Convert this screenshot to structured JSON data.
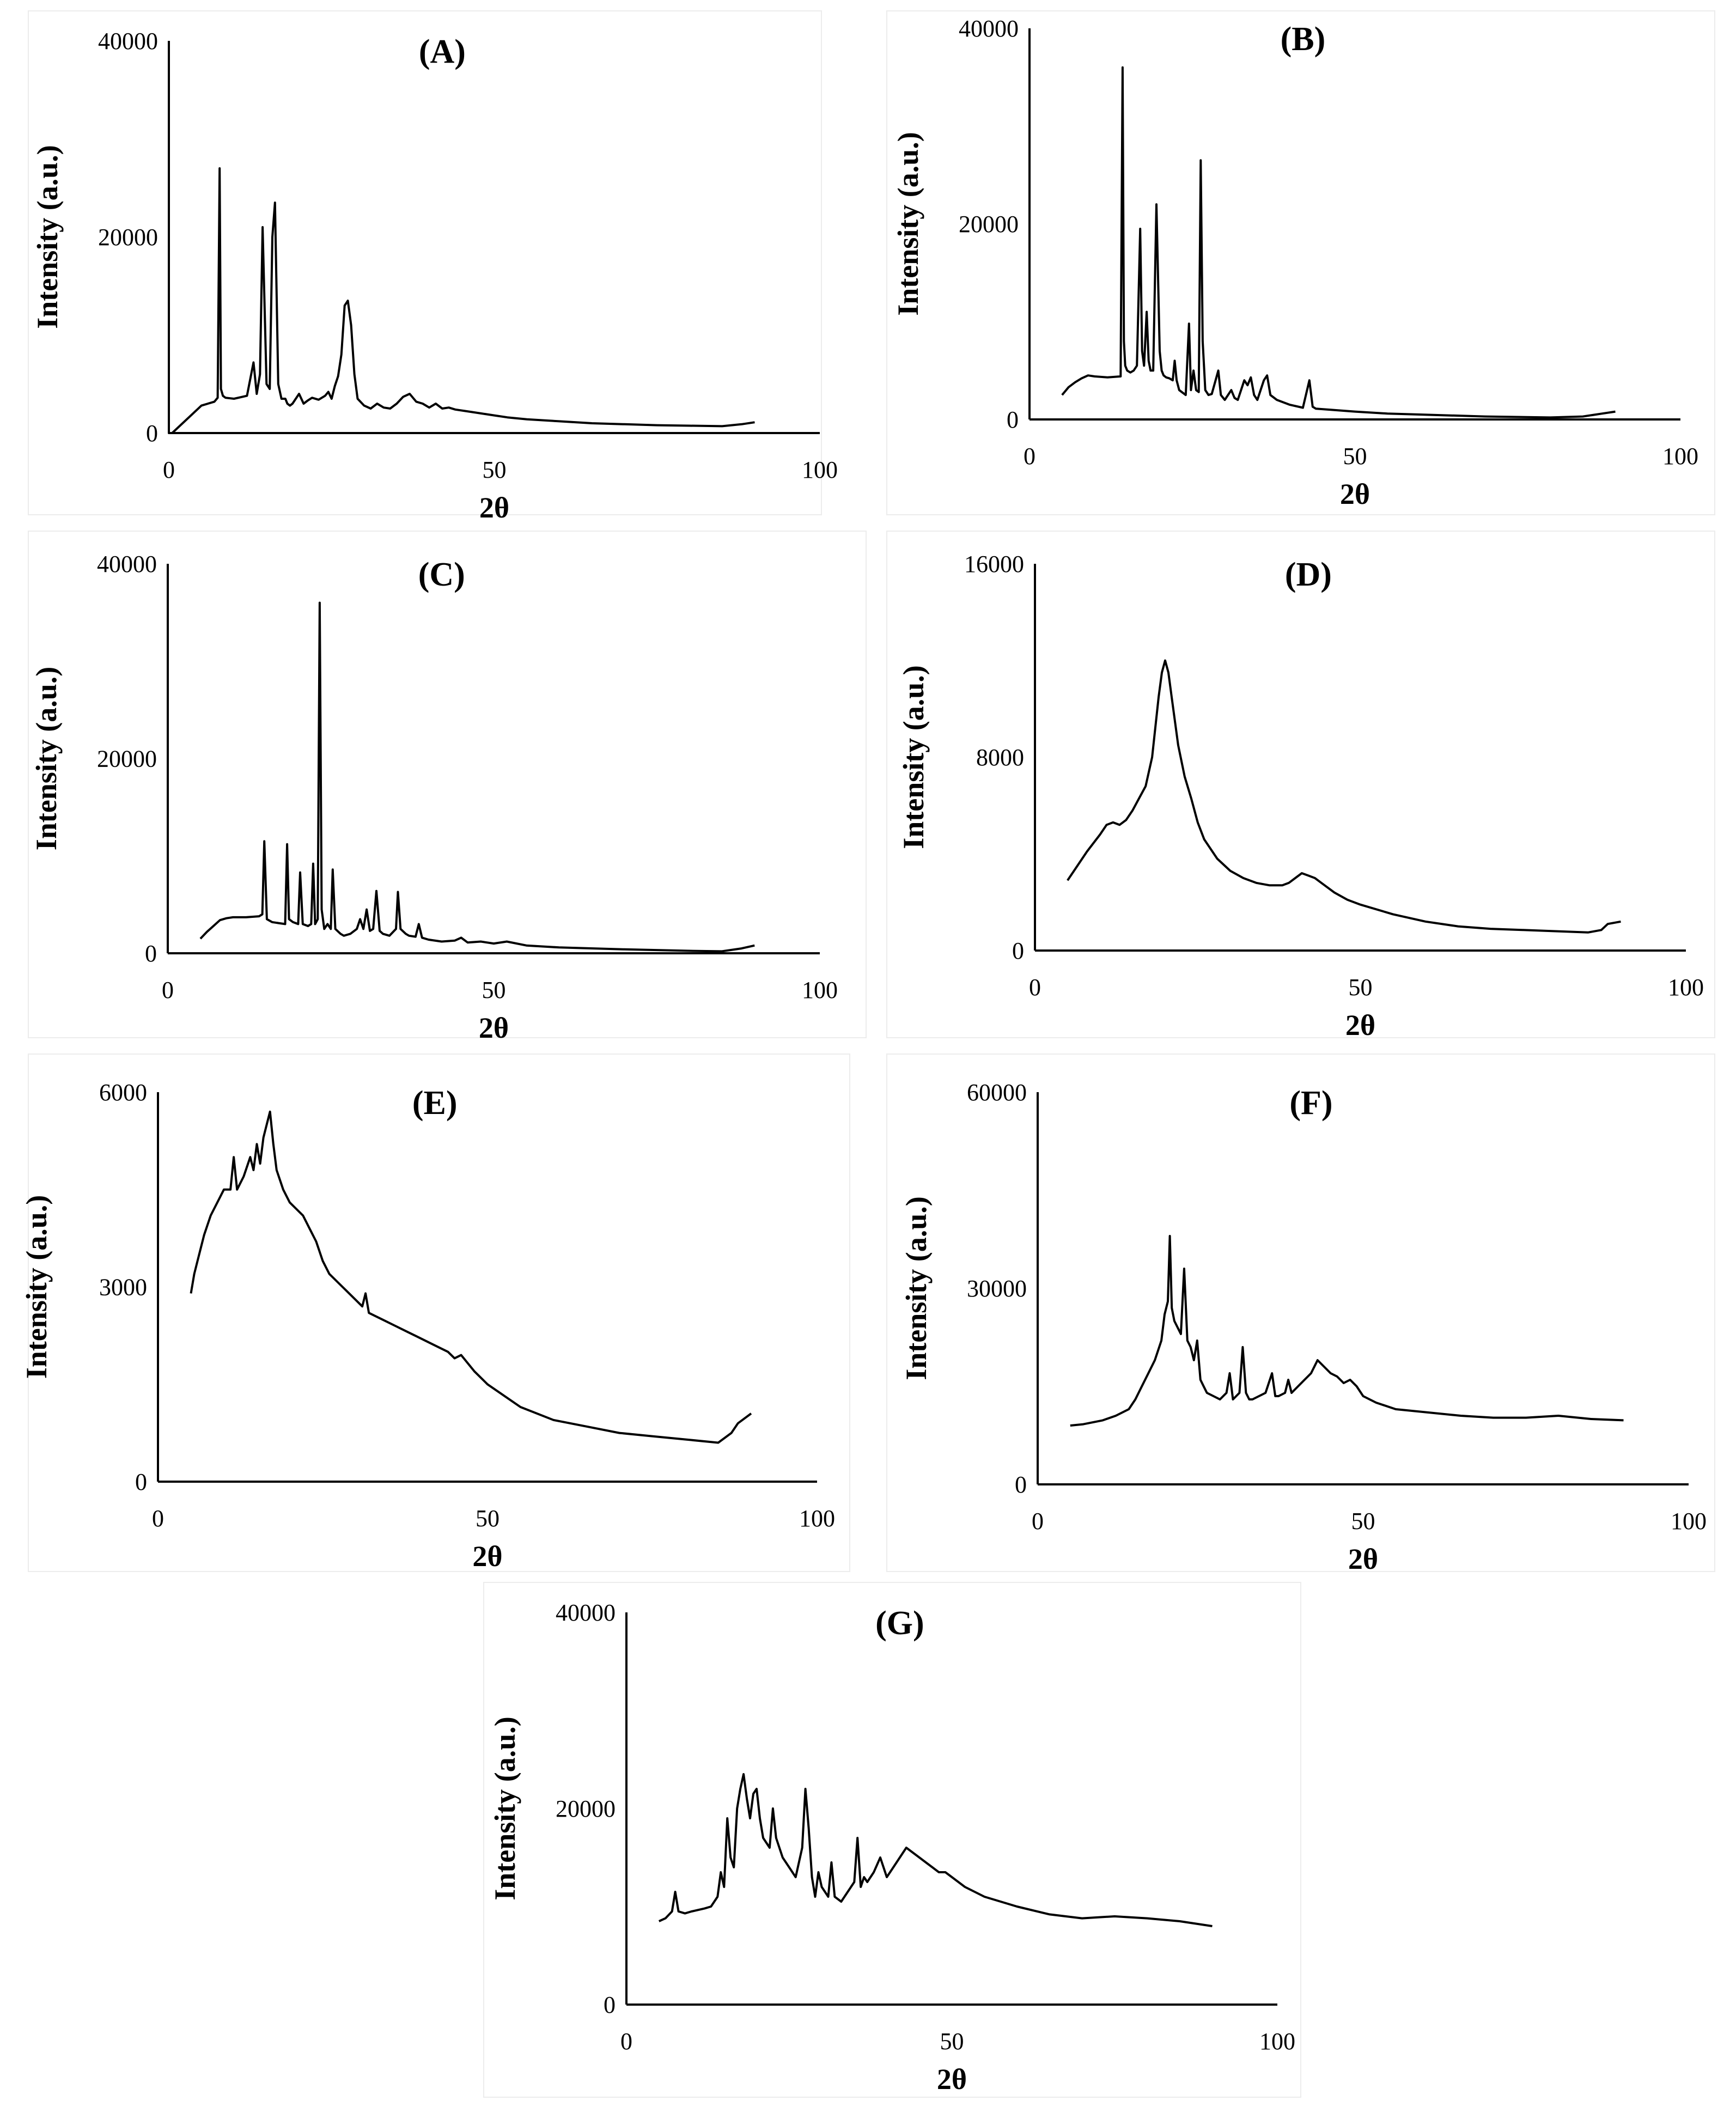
{
  "chart_data": [
    {
      "id": "A",
      "type": "line",
      "title": "(A)",
      "xlabel": "2θ",
      "ylabel": "Intensity (a.u.)",
      "xlim": [
        0,
        100
      ],
      "ylim": [
        0,
        40000
      ],
      "xticks": [
        0,
        50,
        100
      ],
      "yticks": [
        0,
        20000,
        40000
      ],
      "x": [
        0,
        0,
        0.5,
        5,
        7,
        7.5,
        7.8,
        8.0,
        8.3,
        8.7,
        10,
        12,
        13,
        13.5,
        14,
        14.4,
        15,
        15.5,
        15.9,
        16.3,
        16.8,
        17.3,
        17.9,
        18.2,
        18.6,
        19,
        20,
        20.7,
        21.3,
        22,
        23,
        24,
        24.5,
        25,
        25.5,
        26,
        26.5,
        27,
        27.5,
        28,
        28.5,
        29,
        30,
        31,
        32,
        33,
        34,
        35,
        36,
        37,
        38,
        39,
        40,
        41,
        42,
        43,
        44,
        46,
        48,
        50,
        52,
        55,
        60,
        65,
        70,
        75,
        80,
        85,
        88,
        90
      ],
      "y": [
        40000,
        0,
        0,
        2800,
        3200,
        3600,
        27000,
        4500,
        3800,
        3600,
        3500,
        3800,
        7200,
        4000,
        6000,
        21000,
        5000,
        4500,
        20000,
        23500,
        5000,
        3500,
        3500,
        3000,
        2800,
        3000,
        4000,
        3000,
        3300,
        3600,
        3400,
        3800,
        4200,
        3500,
        4800,
        5800,
        8000,
        13000,
        13500,
        11000,
        6000,
        3500,
        2800,
        2500,
        3000,
        2600,
        2500,
        3000,
        3700,
        4000,
        3200,
        3000,
        2600,
        3000,
        2500,
        2600,
        2400,
        2200,
        2000,
        1800,
        1600,
        1400,
        1200,
        1000,
        900,
        800,
        750,
        700,
        900,
        1100
      ]
    },
    {
      "id": "B",
      "type": "line",
      "title": "(B)",
      "xlabel": "2θ",
      "ylabel": "Intensity (a.u.)",
      "xlim": [
        0,
        100
      ],
      "ylim": [
        0,
        40000
      ],
      "xticks": [
        0,
        50,
        100
      ],
      "yticks": [
        0,
        20000,
        40000
      ],
      "x": [
        5,
        6,
        7,
        8,
        9,
        10,
        12,
        14,
        14.3,
        14.5,
        14.7,
        15,
        15.5,
        16,
        16.5,
        17,
        17.3,
        17.6,
        18,
        18.3,
        18.6,
        19,
        19.5,
        20,
        20.3,
        20.6,
        21,
        21.5,
        22,
        22.3,
        22.6,
        23,
        24,
        24.5,
        24.8,
        25.2,
        25.6,
        26,
        26.3,
        26.6,
        27,
        27.5,
        28,
        29,
        29.4,
        30,
        31,
        31.5,
        32,
        33,
        33.5,
        34,
        34.5,
        35,
        36,
        36.5,
        37,
        38,
        40,
        42,
        43,
        43.5,
        44,
        46,
        50,
        55,
        60,
        70,
        80,
        85,
        88,
        90
      ],
      "y": [
        2500,
        3300,
        3800,
        4200,
        4500,
        4400,
        4300,
        4400,
        36000,
        8000,
        5500,
        5000,
        4800,
        5000,
        5500,
        19500,
        7000,
        5500,
        11000,
        6000,
        5000,
        5000,
        22000,
        7000,
        5000,
        4500,
        4300,
        4200,
        4000,
        6000,
        4000,
        3000,
        2500,
        9800,
        3000,
        5000,
        3000,
        2800,
        26500,
        8000,
        3000,
        2500,
        2600,
        5000,
        2500,
        2000,
        3000,
        2200,
        2000,
        4000,
        3500,
        4300,
        2500,
        2000,
        4000,
        4500,
        2500,
        2000,
        1500,
        1200,
        4000,
        1300,
        1100,
        1000,
        800,
        600,
        500,
        300,
        200,
        300,
        600,
        800
      ]
    },
    {
      "id": "C",
      "type": "line",
      "title": "(C)",
      "xlabel": "2θ",
      "ylabel": "Intensity (a.u.)",
      "xlim": [
        0,
        100
      ],
      "ylim": [
        0,
        40000
      ],
      "xticks": [
        0,
        50,
        100
      ],
      "yticks": [
        0,
        20000,
        40000
      ],
      "x": [
        5,
        6,
        7,
        8,
        9,
        10,
        12,
        14,
        14.5,
        14.8,
        15.2,
        16,
        17,
        18,
        18.3,
        18.6,
        19.2,
        20,
        20.3,
        20.7,
        21.5,
        22,
        22.3,
        22.6,
        23,
        23.3,
        23.6,
        24,
        24.5,
        25,
        25.3,
        25.7,
        26.5,
        27,
        28,
        29,
        29.5,
        30,
        30.5,
        31,
        31.5,
        32,
        32.5,
        33,
        34,
        35,
        35.3,
        35.7,
        36.5,
        37,
        38,
        38.5,
        39,
        40,
        42,
        44,
        45,
        46,
        48,
        50,
        52,
        55,
        60,
        70,
        80,
        85,
        88,
        90
      ],
      "y": [
        1500,
        2200,
        2800,
        3400,
        3600,
        3700,
        3700,
        3800,
        4000,
        11500,
        3500,
        3200,
        3100,
        3000,
        11200,
        3500,
        3200,
        3000,
        8300,
        3000,
        2800,
        3000,
        9200,
        3000,
        3500,
        36000,
        4500,
        2500,
        3000,
        2500,
        8600,
        2500,
        2000,
        1800,
        2000,
        2500,
        3500,
        2500,
        4500,
        2300,
        2500,
        6400,
        2300,
        2000,
        1800,
        2500,
        6300,
        2500,
        2000,
        1800,
        1700,
        3000,
        1600,
        1400,
        1200,
        1300,
        1600,
        1100,
        1200,
        1000,
        1200,
        800,
        600,
        400,
        250,
        200,
        500,
        800
      ]
    },
    {
      "id": "D",
      "type": "line",
      "title": "(D)",
      "xlabel": "2θ",
      "ylabel": "Intensity (a.u.)",
      "xlim": [
        0,
        100
      ],
      "ylim": [
        0,
        16000
      ],
      "xticks": [
        0,
        50,
        100
      ],
      "yticks": [
        0,
        8000,
        16000
      ],
      "x": [
        5,
        6,
        8,
        10,
        11,
        12,
        13,
        14,
        15,
        16,
        17,
        18,
        19,
        19.5,
        20,
        20.5,
        21,
        22,
        23,
        24,
        25,
        26,
        28,
        30,
        32,
        34,
        36,
        38,
        39,
        40,
        41,
        42,
        43,
        44,
        46,
        48,
        50,
        55,
        60,
        65,
        70,
        75,
        80,
        85,
        87,
        88,
        90
      ],
      "y": [
        2900,
        3300,
        4100,
        4800,
        5200,
        5300,
        5200,
        5400,
        5800,
        6300,
        6800,
        8000,
        10500,
        11500,
        12000,
        11500,
        10500,
        8500,
        7200,
        6300,
        5300,
        4600,
        3800,
        3300,
        3000,
        2800,
        2700,
        2700,
        2800,
        3000,
        3200,
        3100,
        3000,
        2800,
        2400,
        2100,
        1900,
        1500,
        1200,
        1000,
        900,
        850,
        800,
        750,
        850,
        1100,
        1200
      ]
    },
    {
      "id": "E",
      "type": "line",
      "title": "(E)",
      "xlabel": "2θ",
      "ylabel": "Intensity (a.u.)",
      "xlim": [
        0,
        100
      ],
      "ylim": [
        0,
        6000
      ],
      "xticks": [
        0,
        50,
        100
      ],
      "yticks": [
        0,
        3000,
        6000
      ],
      "x": [
        5,
        5.5,
        6,
        7,
        8,
        9,
        10,
        11,
        11.5,
        12,
        13,
        14,
        14.5,
        15,
        15.5,
        16,
        16.5,
        17,
        17.5,
        18,
        19,
        20,
        21,
        22,
        23,
        24,
        25,
        26,
        28,
        30,
        31,
        31.5,
        32,
        34,
        36,
        38,
        40,
        42,
        44,
        45,
        46,
        48,
        50,
        55,
        60,
        65,
        70,
        75,
        80,
        85,
        87,
        88,
        90
      ],
      "y": [
        2900,
        3200,
        3400,
        3800,
        4100,
        4300,
        4500,
        4500,
        5000,
        4500,
        4700,
        5000,
        4800,
        5200,
        4900,
        5300,
        5500,
        5700,
        5200,
        4800,
        4500,
        4300,
        4200,
        4100,
        3900,
        3700,
        3400,
        3200,
        3000,
        2800,
        2700,
        2900,
        2600,
        2500,
        2400,
        2300,
        2200,
        2100,
        2000,
        1900,
        1950,
        1700,
        1500,
        1150,
        950,
        850,
        750,
        700,
        650,
        600,
        750,
        900,
        1050
      ]
    },
    {
      "id": "F",
      "type": "line",
      "title": "(F)",
      "xlabel": "2θ",
      "ylabel": "Intensity (a.u.)",
      "xlim": [
        0,
        100
      ],
      "ylim": [
        0,
        60000
      ],
      "xticks": [
        0,
        50,
        100
      ],
      "yticks": [
        0,
        30000,
        60000
      ],
      "x": [
        5,
        7,
        10,
        12,
        14,
        15,
        16,
        17,
        18,
        19,
        19.5,
        20,
        20.3,
        20.6,
        21,
        21.5,
        22,
        22.5,
        23,
        23.5,
        24,
        24.5,
        25,
        25.5,
        26,
        27,
        28,
        29,
        29.5,
        30,
        31,
        31.5,
        32,
        32.5,
        33,
        34,
        35,
        36,
        36.5,
        37,
        38,
        38.5,
        39,
        40,
        41,
        42,
        43,
        44,
        45,
        46,
        47,
        48,
        49,
        50,
        52,
        55,
        60,
        65,
        70,
        75,
        80,
        85,
        90
      ],
      "y": [
        9000,
        9200,
        9800,
        10500,
        11500,
        13000,
        15000,
        17000,
        19000,
        22000,
        26000,
        28000,
        38000,
        27000,
        25000,
        24000,
        23000,
        33000,
        22000,
        21000,
        19000,
        22000,
        16000,
        15000,
        14000,
        13500,
        13000,
        14000,
        17000,
        13000,
        14000,
        21000,
        14000,
        13000,
        13000,
        13500,
        14000,
        17000,
        13500,
        13500,
        14000,
        16000,
        14000,
        15000,
        16000,
        17000,
        19000,
        18000,
        17000,
        16500,
        15500,
        16000,
        15000,
        13500,
        12500,
        11500,
        11000,
        10500,
        10200,
        10200,
        10500,
        10000,
        9800
      ]
    },
    {
      "id": "G",
      "type": "line",
      "title": "(G)",
      "xlabel": "2θ",
      "ylabel": "Intensity (a.u.)",
      "xlim": [
        0,
        100
      ],
      "ylim": [
        0,
        40000
      ],
      "xticks": [
        0,
        50,
        100
      ],
      "yticks": [
        0,
        20000,
        40000
      ],
      "x": [
        5,
        6,
        7,
        7.5,
        8,
        9,
        10,
        12,
        13,
        14,
        14.5,
        15,
        15.5,
        16,
        16.5,
        17,
        17.5,
        18,
        18.5,
        19,
        19.5,
        20,
        20.5,
        21,
        22,
        22.5,
        23,
        24,
        25,
        26,
        27,
        27.5,
        28,
        28.5,
        29,
        29.5,
        30,
        31,
        31.5,
        32,
        33,
        34,
        35,
        35.5,
        36,
        36.5,
        37,
        38,
        39,
        40,
        41,
        42,
        43,
        44,
        45,
        46,
        47,
        48,
        49,
        50,
        52,
        55,
        60,
        65,
        70,
        75,
        80,
        85,
        90
      ],
      "y": [
        8500,
        8800,
        9500,
        11500,
        9500,
        9300,
        9500,
        9800,
        10000,
        11000,
        13500,
        12000,
        19000,
        15000,
        14000,
        20000,
        22000,
        23500,
        21000,
        19000,
        21500,
        22000,
        19000,
        17000,
        16000,
        20000,
        17000,
        15000,
        14000,
        13000,
        16000,
        22000,
        18000,
        13000,
        11000,
        13500,
        12000,
        11000,
        14500,
        11000,
        10500,
        11500,
        12500,
        17000,
        12000,
        13000,
        12500,
        13500,
        15000,
        13000,
        14000,
        15000,
        16000,
        15500,
        15000,
        14500,
        14000,
        13500,
        13500,
        13000,
        12000,
        11000,
        10000,
        9200,
        8800,
        9000,
        8800,
        8500,
        8000
      ]
    }
  ]
}
